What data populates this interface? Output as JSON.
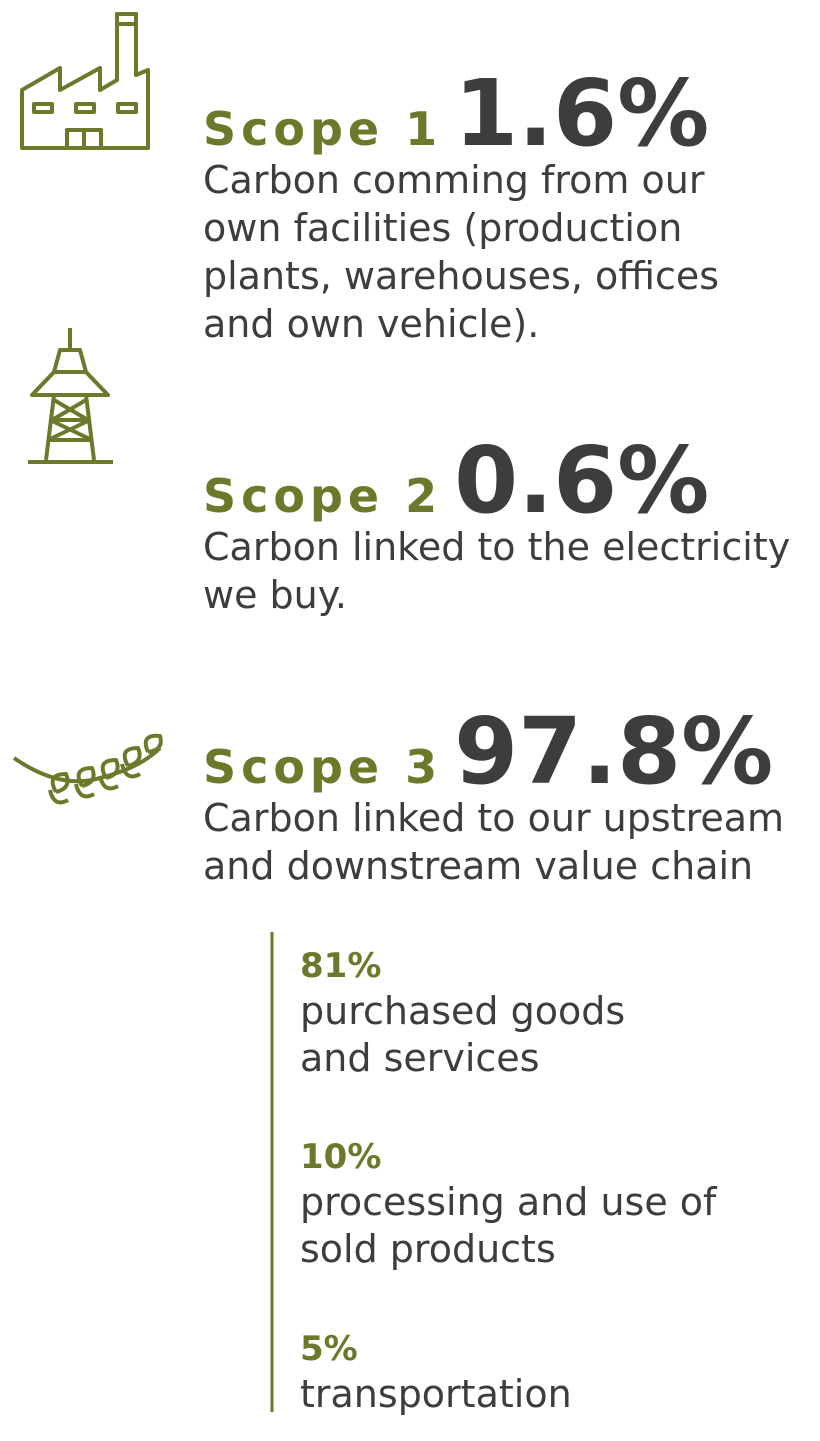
{
  "scopes": [
    {
      "label": "Scope 1",
      "value": "1.6%",
      "description": [
        "Carbon comming from our",
        "own facilities (production",
        "plants, warehouses, offices",
        "and own vehicle)."
      ]
    },
    {
      "label": "Scope 2",
      "value": "0.6%",
      "description": [
        "Carbon linked to the electricity",
        "we buy."
      ]
    },
    {
      "label": "Scope 3",
      "value": "97.8%",
      "description": [
        "Carbon linked to our upstream",
        "and downstream value chain"
      ]
    }
  ],
  "breakdown": [
    {
      "value": "81%",
      "description": [
        "purchased goods",
        "and services"
      ]
    },
    {
      "value": "10%",
      "description": [
        "processing and use of",
        "sold products"
      ]
    },
    {
      "value": "5%",
      "description": [
        "transportation"
      ]
    }
  ]
}
